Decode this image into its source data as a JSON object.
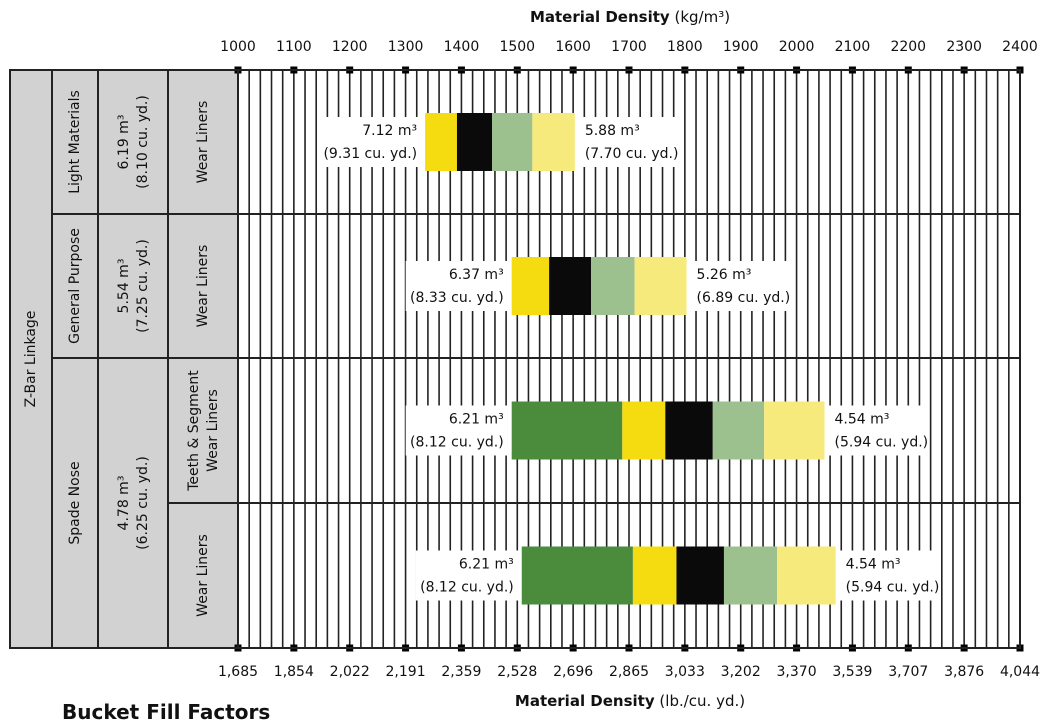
{
  "top_axis": {
    "title_bold": "Material Density",
    "title_unit": "(kg/m³)"
  },
  "bottom_axis": {
    "title_bold": "Material Density",
    "title_unit": "(lb./cu. yd.)"
  },
  "footer_title": "Bucket Fill Factors",
  "colors": {
    "fill_115": "#4a8c3c",
    "fill_110": "#f5dc10",
    "fill_100": "#0a0a0a",
    "fill_95": "#9cc18f",
    "fill_90": "#f7ea7c",
    "grid": "#222222",
    "row_label_bg": "#d2d2d2"
  },
  "chart_data": {
    "type": "bar",
    "orientation": "horizontal-range",
    "x_top": {
      "label": "Material Density (kg/m³)",
      "ticks": [
        1000,
        1100,
        1200,
        1300,
        1400,
        1500,
        1600,
        1700,
        1800,
        1900,
        2000,
        2100,
        2200,
        2300,
        2400
      ],
      "range": [
        1000,
        2400
      ]
    },
    "x_bottom": {
      "label": "Material Density (lb./cu. yd.)",
      "ticks": [
        "1,685",
        "1,854",
        "2,022",
        "2,191",
        "2,359",
        "2,528",
        "2,696",
        "2,865",
        "3,033",
        "3,202",
        "3,370",
        "3,539",
        "3,707",
        "3,876",
        "4,044"
      ]
    },
    "linkage": "Z-Bar Linkage",
    "groups": [
      {
        "name": "Light Materials",
        "capacity": [
          "6.19 m³",
          "(8.10 cu. yd.)"
        ]
      },
      {
        "name": "General Purpose",
        "capacity": [
          "5.54 m³",
          "(7.25 cu. yd.)"
        ]
      },
      {
        "name": "Spade Nose",
        "capacity": [
          "4.78 m³",
          "(6.25 cu. yd.)"
        ]
      }
    ],
    "rows": [
      {
        "group": "Light Materials",
        "type_label": [
          "Wear Liners"
        ],
        "left_label": [
          "7.12 m³",
          "(9.31 cu. yd.)"
        ],
        "right_label": [
          "5.88 m³",
          "(7.70 cu. yd.)"
        ],
        "segments": [
          {
            "fill": "fill_110",
            "from": 1335,
            "to": 1392
          },
          {
            "fill": "fill_100",
            "from": 1392,
            "to": 1455
          },
          {
            "fill": "fill_95",
            "from": 1455,
            "to": 1527
          },
          {
            "fill": "fill_90",
            "from": 1527,
            "to": 1603
          }
        ]
      },
      {
        "group": "General Purpose",
        "type_label": [
          "Wear Liners"
        ],
        "left_label": [
          "6.37 m³",
          "(8.33 cu. yd.)"
        ],
        "right_label": [
          "5.26 m³",
          "(6.89 cu. yd.)"
        ],
        "segments": [
          {
            "fill": "fill_110",
            "from": 1490,
            "to": 1557
          },
          {
            "fill": "fill_100",
            "from": 1557,
            "to": 1632
          },
          {
            "fill": "fill_95",
            "from": 1632,
            "to": 1710
          },
          {
            "fill": "fill_90",
            "from": 1710,
            "to": 1803
          }
        ]
      },
      {
        "group": "Spade Nose",
        "type_label": [
          "Teeth & Segment",
          "Wear Liners"
        ],
        "left_label": [
          "6.21 m³",
          "(8.12 cu. yd.)"
        ],
        "right_label": [
          "4.54 m³",
          "(5.94 cu. yd.)"
        ],
        "segments": [
          {
            "fill": "fill_115",
            "from": 1490,
            "to": 1688
          },
          {
            "fill": "fill_110",
            "from": 1688,
            "to": 1765
          },
          {
            "fill": "fill_100",
            "from": 1765,
            "to": 1850
          },
          {
            "fill": "fill_95",
            "from": 1850,
            "to": 1942
          },
          {
            "fill": "fill_90",
            "from": 1942,
            "to": 2050
          }
        ]
      },
      {
        "group": "Spade Nose",
        "type_label": [
          "Wear Liners"
        ],
        "left_label": [
          "6.21 m³",
          "(8.12 cu. yd.)"
        ],
        "right_label": [
          "4.54 m³",
          "(5.94 cu. yd.)"
        ],
        "segments": [
          {
            "fill": "fill_115",
            "from": 1508,
            "to": 1707
          },
          {
            "fill": "fill_110",
            "from": 1707,
            "to": 1785
          },
          {
            "fill": "fill_100",
            "from": 1785,
            "to": 1870
          },
          {
            "fill": "fill_95",
            "from": 1870,
            "to": 1965
          },
          {
            "fill": "fill_90",
            "from": 1965,
            "to": 2070
          }
        ]
      }
    ]
  }
}
